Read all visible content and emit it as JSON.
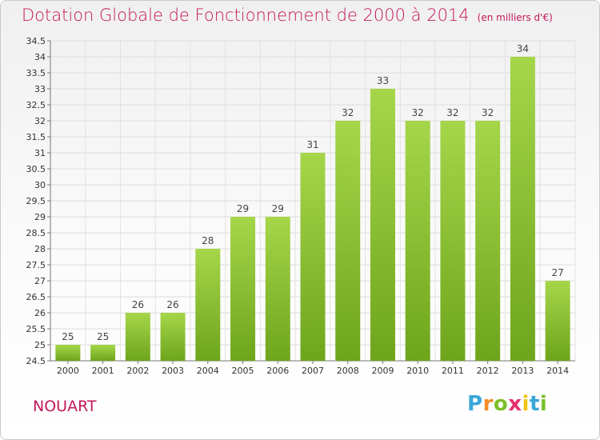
{
  "title": "Dotation Globale de Fonctionnement de 2000 à 2014",
  "unit": "(en milliers d'€)",
  "commune": "NOUART",
  "logo": {
    "letters": [
      "P",
      "r",
      "o",
      "x",
      "i",
      "t",
      "i"
    ],
    "colors": [
      "#3aa7d8",
      "#f28c28",
      "#7cbf2a",
      "#e5306f",
      "#f2c511",
      "#3aa7d8",
      "#7cbf2a"
    ]
  },
  "colors": {
    "bar_light": "#a5d64a",
    "bar_dark": "#6ea51c",
    "title": "#c2185b"
  },
  "chart_data": {
    "type": "bar",
    "title": "Dotation Globale de Fonctionnement de 2000 à 2014",
    "categories": [
      "2000",
      "2001",
      "2002",
      "2003",
      "2004",
      "2005",
      "2006",
      "2007",
      "2008",
      "2009",
      "2010",
      "2011",
      "2012",
      "2013",
      "2014"
    ],
    "values": [
      25,
      25,
      26,
      26,
      28,
      29,
      29,
      31,
      32,
      33,
      32,
      32,
      32,
      34,
      27
    ],
    "ylim": [
      24.5,
      34.5
    ],
    "yticks": [
      "24.5",
      "25",
      "25.5",
      "26",
      "26.5",
      "27",
      "27.5",
      "28",
      "28.5",
      "29",
      "29.5",
      "30",
      "30.5",
      "31",
      "31.5",
      "32",
      "32.5",
      "33",
      "33.5",
      "34",
      "34.5"
    ],
    "grid": true
  }
}
